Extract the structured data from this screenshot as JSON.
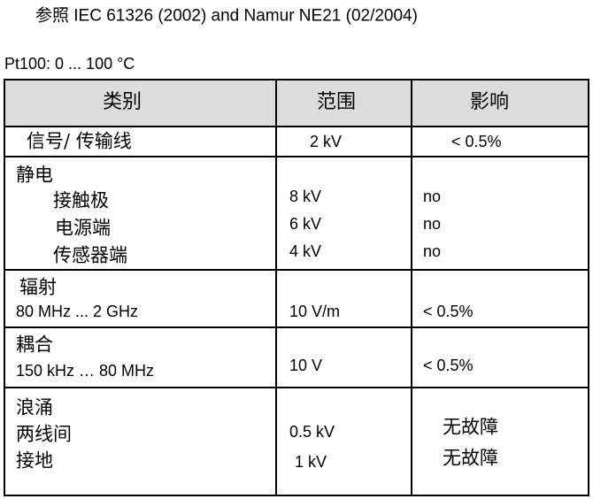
{
  "header": {
    "title": "参照 IEC 61326 (2002) and Namur NE21 (02/2004)",
    "subtitle": "Pt100:  0 ... 100 °C"
  },
  "table": {
    "columns": [
      "类别",
      "范围",
      "影响"
    ],
    "rows": [
      [
        [
          "信号/ 传输线"
        ],
        [
          "2 kV"
        ],
        [
          "< 0.5%"
        ]
      ],
      [
        [
          "静电",
          "接触极",
          "电源端",
          "传感器端"
        ],
        [
          "8 kV",
          "6 kV",
          "4 kV"
        ],
        [
          "no",
          "no",
          "no"
        ]
      ],
      [
        [
          "辐射",
          "80 MHz ... 2 GHz"
        ],
        [
          "10 V/m"
        ],
        [
          "< 0.5%"
        ]
      ],
      [
        [
          "耦合",
          "150 kHz … 80 MHz"
        ],
        [
          "10 V"
        ],
        [
          "< 0.5%"
        ]
      ],
      [
        [
          "浪涌",
          "两线间",
          "接地"
        ],
        [
          "0.5 kV",
          "1 kV"
        ],
        [
          "无故障",
          "无故障"
        ]
      ]
    ]
  }
}
